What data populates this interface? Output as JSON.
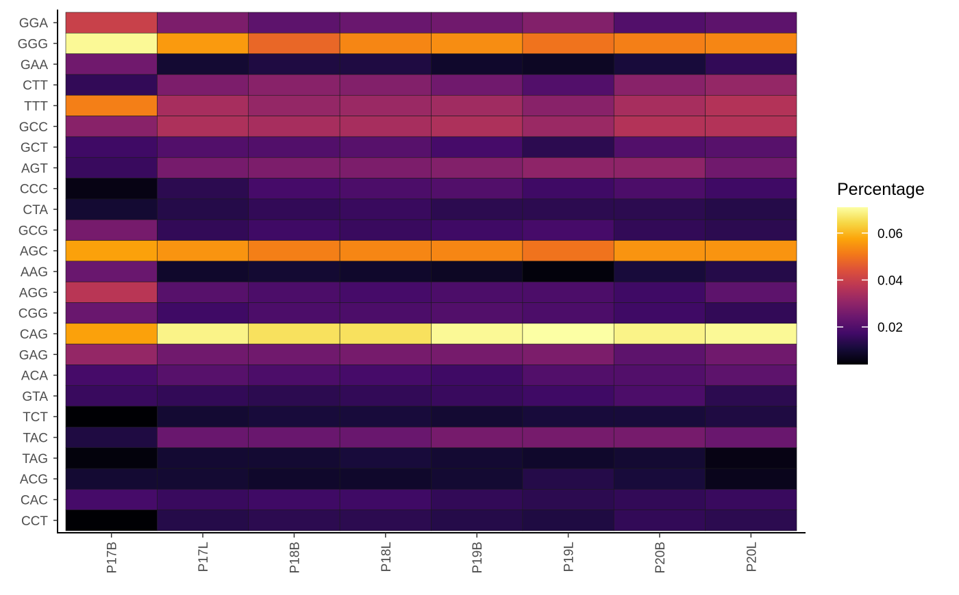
{
  "chart_data": {
    "type": "heatmap",
    "title": "",
    "xlabel": "",
    "ylabel": "",
    "x_categories": [
      "P17B",
      "P17L",
      "P18B",
      "P18L",
      "P19B",
      "P19L",
      "P20B",
      "P20L"
    ],
    "y_categories": [
      "GGA",
      "GGG",
      "GAA",
      "CTT",
      "TTT",
      "GCC",
      "GCT",
      "AGT",
      "CCC",
      "CTA",
      "GCG",
      "AGC",
      "AAG",
      "AGG",
      "CGG",
      "CAG",
      "GAG",
      "ACA",
      "GTA",
      "TCT",
      "TAC",
      "TAG",
      "ACG",
      "CAC",
      "CCT"
    ],
    "values": [
      [
        0.04,
        0.027,
        0.022,
        0.024,
        0.025,
        0.028,
        0.02,
        0.022
      ],
      [
        0.07,
        0.056,
        0.048,
        0.053,
        0.054,
        0.05,
        0.052,
        0.053
      ],
      [
        0.025,
        0.01,
        0.012,
        0.012,
        0.009,
        0.008,
        0.011,
        0.015
      ],
      [
        0.015,
        0.027,
        0.029,
        0.028,
        0.025,
        0.02,
        0.029,
        0.031
      ],
      [
        0.052,
        0.034,
        0.031,
        0.032,
        0.033,
        0.029,
        0.034,
        0.036
      ],
      [
        0.029,
        0.035,
        0.034,
        0.034,
        0.035,
        0.032,
        0.036,
        0.036
      ],
      [
        0.017,
        0.02,
        0.02,
        0.021,
        0.018,
        0.014,
        0.02,
        0.021
      ],
      [
        0.016,
        0.026,
        0.027,
        0.027,
        0.028,
        0.03,
        0.03,
        0.025
      ],
      [
        0.006,
        0.014,
        0.018,
        0.019,
        0.02,
        0.017,
        0.019,
        0.017
      ],
      [
        0.01,
        0.013,
        0.015,
        0.016,
        0.014,
        0.014,
        0.014,
        0.013
      ],
      [
        0.026,
        0.015,
        0.017,
        0.016,
        0.017,
        0.018,
        0.015,
        0.014
      ],
      [
        0.057,
        0.055,
        0.052,
        0.053,
        0.053,
        0.05,
        0.055,
        0.055
      ],
      [
        0.024,
        0.009,
        0.01,
        0.009,
        0.008,
        0.005,
        0.011,
        0.013
      ],
      [
        0.037,
        0.021,
        0.019,
        0.018,
        0.019,
        0.019,
        0.017,
        0.022
      ],
      [
        0.024,
        0.017,
        0.019,
        0.019,
        0.02,
        0.019,
        0.017,
        0.015
      ],
      [
        0.057,
        0.069,
        0.066,
        0.066,
        0.07,
        0.071,
        0.069,
        0.07
      ],
      [
        0.031,
        0.025,
        0.025,
        0.026,
        0.026,
        0.027,
        0.022,
        0.025
      ],
      [
        0.018,
        0.021,
        0.019,
        0.018,
        0.017,
        0.02,
        0.02,
        0.022
      ],
      [
        0.016,
        0.015,
        0.014,
        0.015,
        0.016,
        0.017,
        0.019,
        0.014
      ],
      [
        0.003,
        0.01,
        0.011,
        0.011,
        0.01,
        0.011,
        0.011,
        0.012
      ],
      [
        0.012,
        0.024,
        0.024,
        0.024,
        0.026,
        0.026,
        0.026,
        0.024
      ],
      [
        0.005,
        0.01,
        0.01,
        0.011,
        0.01,
        0.009,
        0.01,
        0.006
      ],
      [
        0.01,
        0.01,
        0.009,
        0.009,
        0.01,
        0.013,
        0.011,
        0.007
      ],
      [
        0.018,
        0.016,
        0.017,
        0.017,
        0.015,
        0.014,
        0.015,
        0.016
      ],
      [
        0.004,
        0.013,
        0.014,
        0.014,
        0.013,
        0.012,
        0.015,
        0.014
      ]
    ],
    "colorscale": "inferno",
    "color_range": [
      0.004,
      0.071
    ],
    "legend": {
      "title": "Percentage",
      "ticks": [
        0.02,
        0.04,
        0.06
      ],
      "tick_labels": [
        "0.02",
        "0.04",
        "0.06"
      ],
      "placement": "right"
    },
    "grid": false,
    "x_tick_rotation_deg": -90
  }
}
